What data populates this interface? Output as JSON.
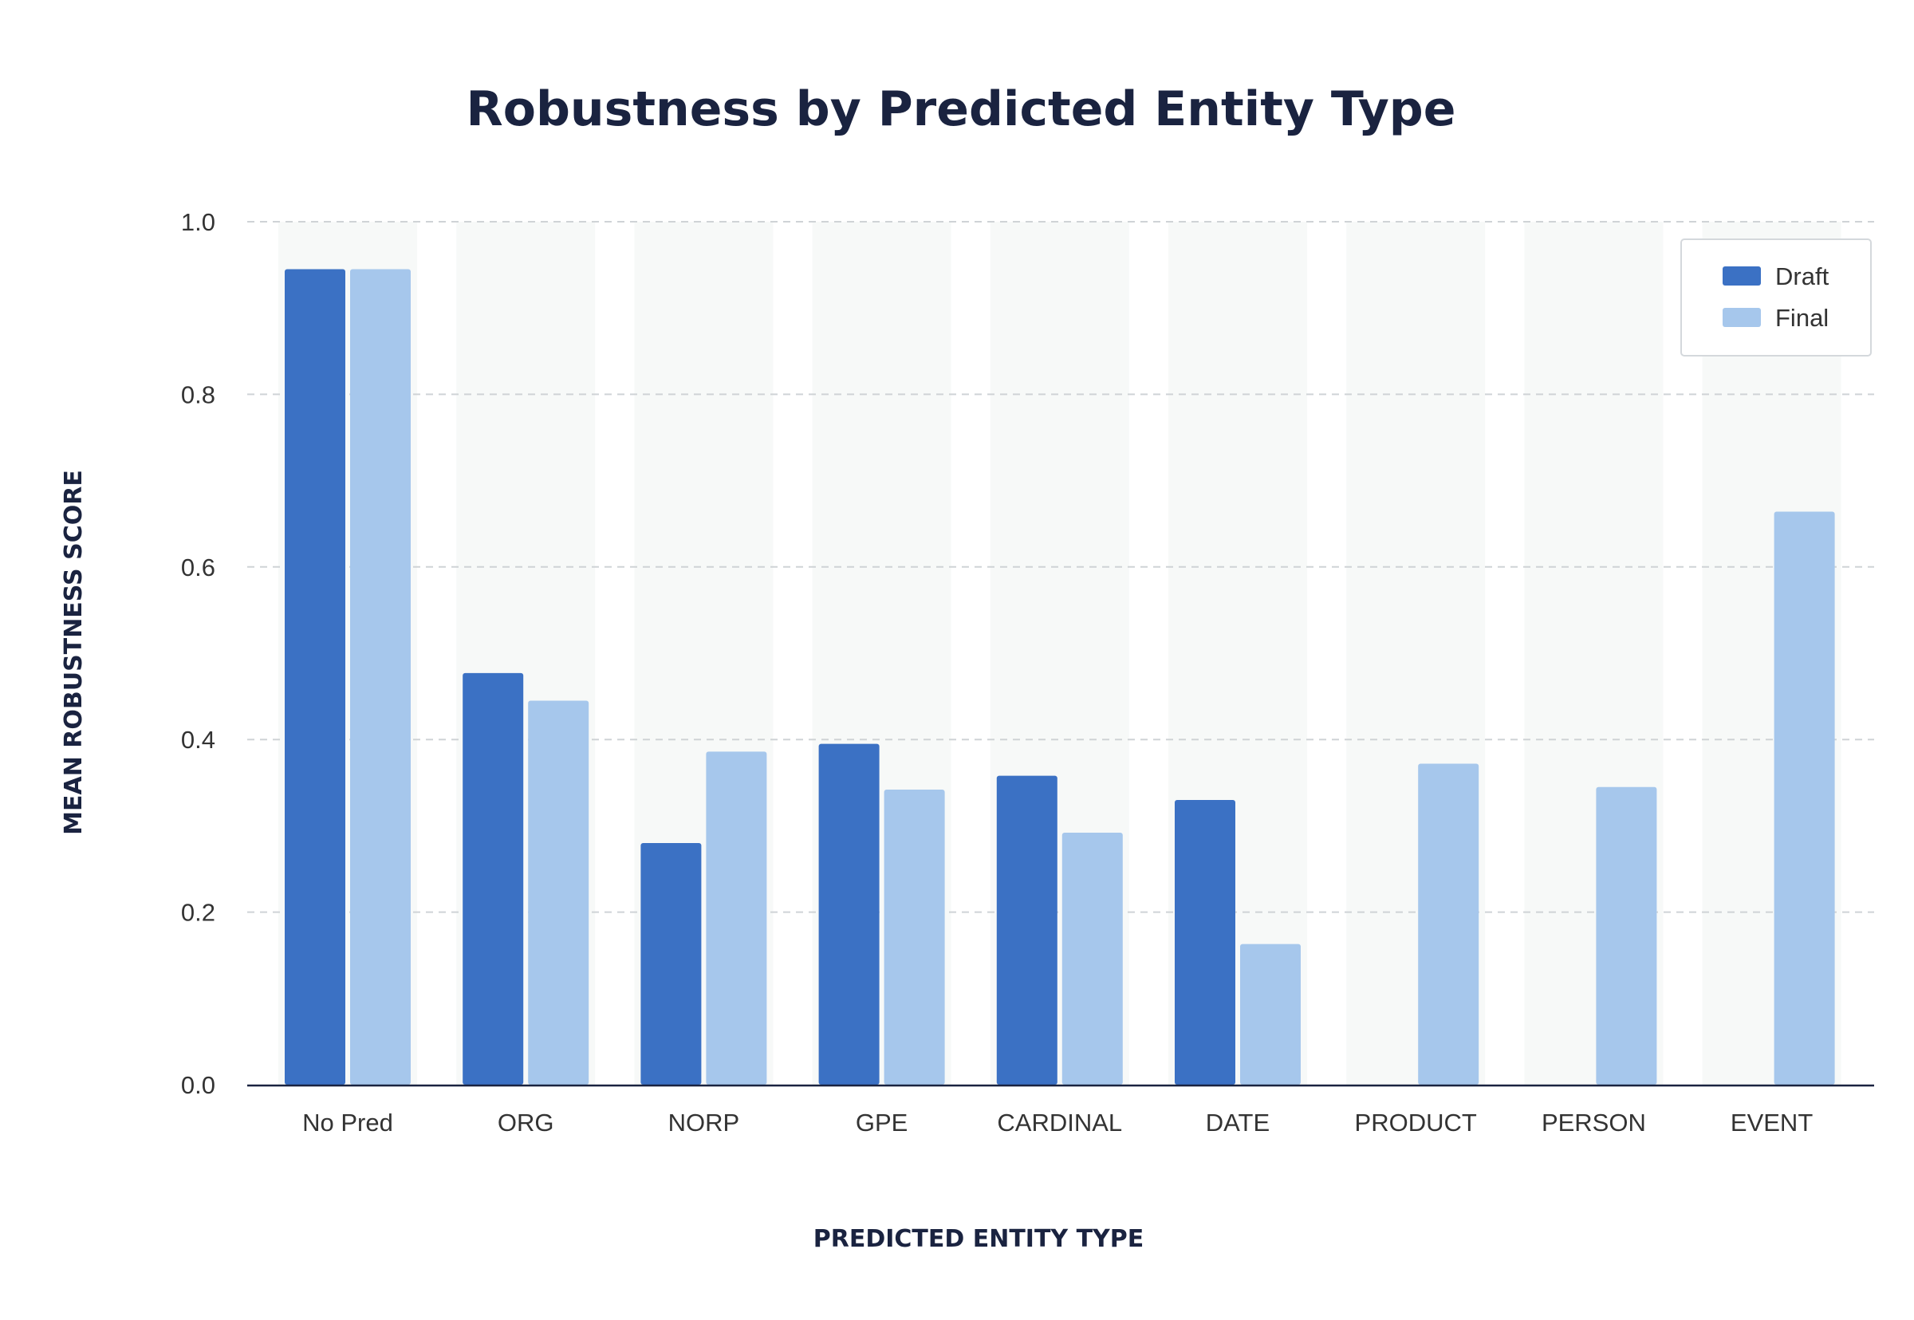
{
  "chart_data": {
    "type": "bar",
    "title": "Robustness by Predicted Entity Type",
    "xlabel": "PREDICTED ENTITY TYPE",
    "ylabel": "MEAN ROBUSTNESS SCORE",
    "categories": [
      "No Pred",
      "ORG",
      "NORP",
      "GPE",
      "CARDINAL",
      "DATE",
      "PRODUCT",
      "PERSON",
      "EVENT"
    ],
    "series": [
      {
        "name": "Draft",
        "color": "#3b71c4",
        "values": [
          0.945,
          0.477,
          0.28,
          0.395,
          0.358,
          0.33,
          null,
          null,
          null
        ]
      },
      {
        "name": "Final",
        "color": "#a6c7ec",
        "values": [
          0.945,
          0.445,
          0.386,
          0.342,
          0.292,
          0.163,
          0.372,
          0.345,
          0.664
        ]
      }
    ],
    "ylim": [
      0,
      1.0
    ],
    "yticks": [
      "0.0",
      "0.2",
      "0.4",
      "0.6",
      "0.8",
      "1.0"
    ],
    "grid": "horizontal dashed",
    "legend_position": "top-right",
    "colors": {
      "category_band": "#f7f9f8",
      "grid": "#cfd3d6",
      "axis": "#1a2340"
    }
  }
}
